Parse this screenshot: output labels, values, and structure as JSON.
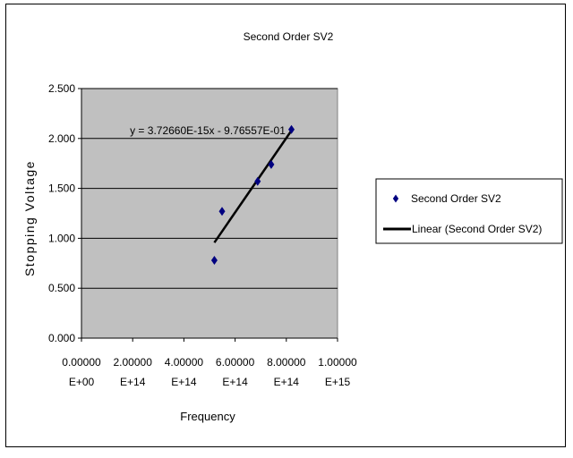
{
  "chart_data": {
    "type": "scatter",
    "title": "Second Order SV2",
    "xlabel": "Frequency",
    "ylabel": "Stopping Voltage",
    "xlim": [
      0,
      1000000000000000.0
    ],
    "ylim": [
      0,
      2.5
    ],
    "x_ticks": [
      {
        "value": 0,
        "line1": "0.00000",
        "line2": "E+00"
      },
      {
        "value": 200000000000000.0,
        "line1": "2.00000",
        "line2": "E+14"
      },
      {
        "value": 400000000000000.0,
        "line1": "4.00000",
        "line2": "E+14"
      },
      {
        "value": 600000000000000.0,
        "line1": "6.00000",
        "line2": "E+14"
      },
      {
        "value": 800000000000000.0,
        "line1": "8.00000",
        "line2": "E+14"
      },
      {
        "value": 1000000000000000.0,
        "line1": "1.00000",
        "line2": "E+15"
      }
    ],
    "y_ticks": [
      {
        "value": 0,
        "label": "0.000"
      },
      {
        "value": 0.5,
        "label": "0.500"
      },
      {
        "value": 1.0,
        "label": "1.000"
      },
      {
        "value": 1.5,
        "label": "1.500"
      },
      {
        "value": 2.0,
        "label": "2.000"
      },
      {
        "value": 2.5,
        "label": "2.500"
      }
    ],
    "grid": "horizontal",
    "legend_position": "right",
    "series": [
      {
        "name": "Second Order SV2",
        "kind": "points",
        "color": "#000080",
        "x": [
          519000000000000.0,
          549000000000000.0,
          688000000000000.0,
          741000000000000.0,
          820000000000000.0
        ],
        "y": [
          0.78,
          1.27,
          1.57,
          1.74,
          2.09
        ]
      },
      {
        "name": "Linear (Second Order SV2)",
        "kind": "trendline",
        "color": "#000000",
        "x": [
          519000000000000.0,
          820000000000000.0
        ],
        "y": [
          0.957,
          2.079
        ]
      }
    ],
    "annotation": "y = 3.72660E-15x - 9.76557E-01",
    "plot_area_color": "#c0c0c0"
  }
}
